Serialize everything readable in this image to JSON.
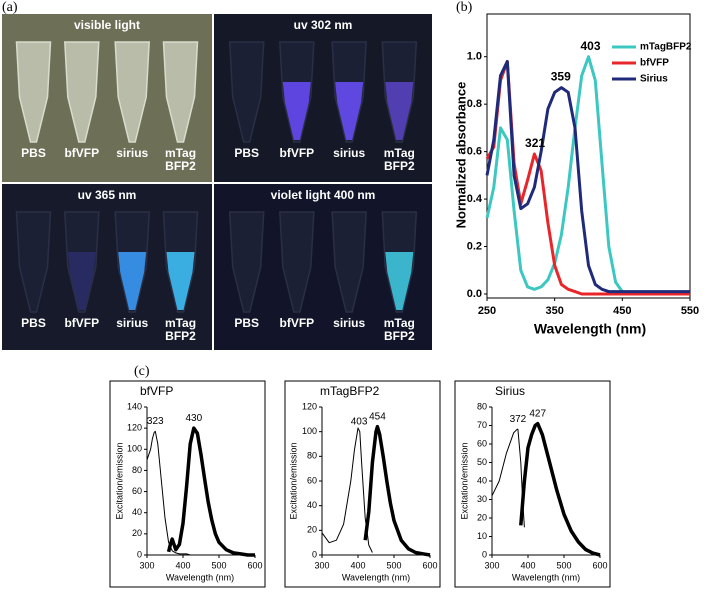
{
  "panel_labels": [
    "(a)",
    "(b)",
    "(c)"
  ],
  "photo_panels": [
    {
      "title": "visible light",
      "tubes": [
        [
          "PBS"
        ],
        [
          "bfVFP"
        ],
        [
          "sirius"
        ],
        [
          "mTag",
          "BFP2"
        ]
      ]
    },
    {
      "title": "uv 302 nm",
      "tubes": [
        [
          "PBS"
        ],
        [
          "bfVFP"
        ],
        [
          "sirius"
        ],
        [
          "mTag",
          "BFP2"
        ]
      ]
    },
    {
      "title": "uv 365 nm",
      "tubes": [
        [
          "PBS"
        ],
        [
          "bfVFP"
        ],
        [
          "sirius"
        ],
        [
          "mTag",
          "BFP2"
        ]
      ]
    },
    {
      "title": "violet light 400 nm",
      "tubes": [
        [
          "PBS"
        ],
        [
          "bfVFP"
        ],
        [
          "sirius"
        ],
        [
          "mTag",
          "BFP2"
        ]
      ]
    }
  ],
  "chart_data": [
    {
      "type": "line",
      "x_label": "Wavelength (nm)",
      "y_label": "Normalized absorbance",
      "x": [
        250,
        260,
        270,
        280,
        290,
        300,
        310,
        320,
        330,
        340,
        350,
        360,
        370,
        380,
        390,
        400,
        410,
        420,
        430,
        440,
        450,
        460,
        470,
        480,
        490,
        500,
        510,
        520,
        530,
        540,
        550
      ],
      "series": [
        {
          "name": "mTagBFP2",
          "color": "#3cc8c0",
          "width": 3,
          "values": [
            0.32,
            0.45,
            0.7,
            0.65,
            0.35,
            0.1,
            0.03,
            0.02,
            0.03,
            0.06,
            0.13,
            0.25,
            0.45,
            0.7,
            0.92,
            1.0,
            0.9,
            0.55,
            0.2,
            0.05,
            0.01,
            0,
            0,
            0,
            0,
            0,
            0,
            0,
            0,
            0,
            0
          ]
        },
        {
          "name": "bfVFP",
          "color": "#e8262a",
          "width": 3,
          "values": [
            0.57,
            0.62,
            0.9,
            0.98,
            0.55,
            0.38,
            0.48,
            0.59,
            0.52,
            0.3,
            0.12,
            0.04,
            0.02,
            0.01,
            0,
            0,
            0,
            0,
            0,
            0,
            0,
            0,
            0,
            0,
            0,
            0,
            0,
            0,
            0,
            0,
            0
          ]
        },
        {
          "name": "Sirius",
          "color": "#1f2a7a",
          "width": 3,
          "values": [
            0.5,
            0.65,
            0.92,
            0.98,
            0.5,
            0.36,
            0.38,
            0.45,
            0.6,
            0.78,
            0.85,
            0.87,
            0.85,
            0.7,
            0.35,
            0.12,
            0.04,
            0.02,
            0.01,
            0.01,
            0.01,
            0.01,
            0.01,
            0.01,
            0.01,
            0.01,
            0.01,
            0.01,
            0.01,
            0.01,
            0.01
          ]
        }
      ],
      "peak_labels": [
        403,
        321,
        359
      ],
      "xlim": [
        250,
        550
      ],
      "xticks": [
        250,
        350,
        450,
        550
      ],
      "ylim": [
        0,
        1.18
      ],
      "yticks": [
        {
          "value": 0,
          "label": "0.0"
        },
        {
          "value": 0.2,
          "label": "0.2"
        },
        {
          "value": 0.4,
          "label": "0.4"
        },
        {
          "value": 0.6,
          "label": "0.6"
        },
        {
          "value": 0.8,
          "label": "0.8"
        },
        {
          "value": 1.0,
          "label": "1.0"
        }
      ],
      "legend": "upper right",
      "frame": true
    },
    {
      "type": "line",
      "title": "bfVFP",
      "x_label": "Wavelength (nm)",
      "y_label": "Excitation/emission",
      "series": [
        {
          "color": "#000",
          "width": 1,
          "x": [
            300,
            310,
            315,
            320,
            323,
            330,
            340,
            350,
            360,
            370,
            380,
            390,
            400,
            410,
            420
          ],
          "values": [
            90,
            100,
            110,
            116,
            117,
            105,
            70,
            35,
            12,
            4,
            2,
            1,
            1,
            1,
            0
          ]
        },
        {
          "color": "#000",
          "width": 3.5,
          "x": [
            360,
            365,
            370,
            375,
            380,
            390,
            400,
            410,
            420,
            430,
            440,
            450,
            460,
            470,
            480,
            490,
            500,
            520,
            540,
            560,
            580,
            600
          ],
          "values": [
            3,
            10,
            15,
            10,
            5,
            10,
            30,
            65,
            105,
            120,
            115,
            95,
            72,
            50,
            33,
            20,
            12,
            5,
            2,
            1,
            0,
            0
          ]
        }
      ],
      "peak_labels": [
        323,
        430
      ],
      "xlim": [
        300,
        600
      ],
      "xticks": [
        300,
        400,
        500,
        600
      ],
      "ylim": [
        0,
        140
      ],
      "yticks": [
        0,
        20,
        40,
        60,
        80,
        100,
        120,
        140
      ]
    },
    {
      "type": "line",
      "title": "mTagBFP2",
      "x_label": "Wavelength (nm)",
      "y_label": "Excitation/emission",
      "series": [
        {
          "color": "#000",
          "width": 1,
          "x": [
            300,
            320,
            340,
            360,
            380,
            390,
            400,
            405,
            410,
            420,
            430,
            440
          ],
          "values": [
            18,
            10,
            12,
            25,
            60,
            85,
            103,
            100,
            75,
            30,
            8,
            2
          ]
        },
        {
          "color": "#000",
          "width": 3.5,
          "x": [
            420,
            430,
            440,
            450,
            454,
            460,
            470,
            480,
            490,
            500,
            520,
            540,
            560,
            580,
            600
          ],
          "values": [
            12,
            35,
            75,
            100,
            104,
            98,
            80,
            60,
            42,
            28,
            12,
            5,
            2,
            1,
            0
          ]
        }
      ],
      "peak_labels": [
        403,
        454
      ],
      "xlim": [
        300,
        600
      ],
      "xticks": [
        300,
        400,
        500,
        600
      ],
      "ylim": [
        0,
        120
      ],
      "yticks": [
        0,
        20,
        40,
        60,
        80,
        100,
        120
      ]
    },
    {
      "type": "line",
      "title": "Sirius",
      "x_label": "Wavelength (nm)",
      "y_label": "Excitation/emission",
      "series": [
        {
          "color": "#000",
          "width": 1,
          "x": [
            300,
            320,
            340,
            360,
            370,
            372,
            380,
            385,
            390
          ],
          "values": [
            32,
            40,
            55,
            66,
            68,
            68,
            50,
            30,
            15
          ]
        },
        {
          "color": "#000",
          "width": 3.5,
          "x": [
            380,
            390,
            400,
            410,
            420,
            427,
            440,
            460,
            480,
            500,
            520,
            540,
            560,
            580,
            600
          ],
          "values": [
            16,
            40,
            58,
            65,
            70,
            71,
            65,
            50,
            35,
            22,
            13,
            7,
            3,
            1,
            0
          ]
        }
      ],
      "peak_labels": [
        372,
        427
      ],
      "xlim": [
        300,
        600
      ],
      "xticks": [
        300,
        400,
        500,
        600
      ],
      "ylim": [
        0,
        80
      ],
      "yticks": [
        0,
        10,
        20,
        30,
        40,
        50,
        60,
        70,
        80
      ]
    }
  ]
}
